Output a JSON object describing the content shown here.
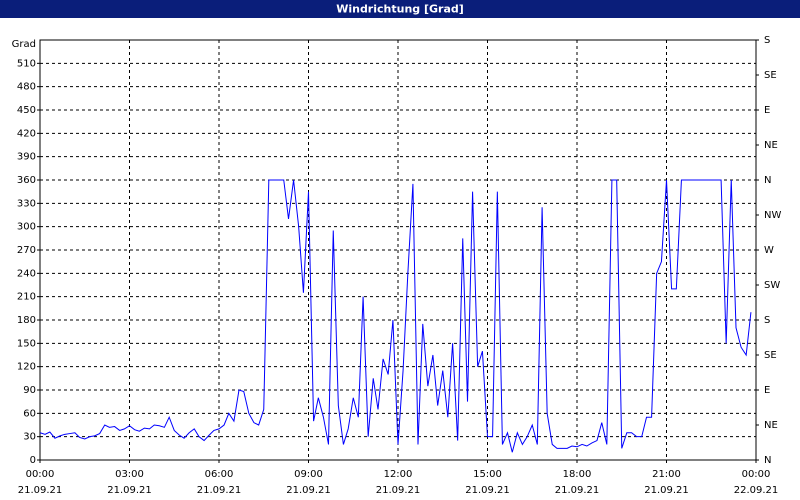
{
  "chart_data": {
    "type": "line",
    "title": "Windrichtung [Grad]",
    "y_label": "Grad",
    "color": "#0000ff",
    "grid": true,
    "x": [
      0,
      0.17,
      0.33,
      0.5,
      0.67,
      0.83,
      1,
      1.17,
      1.33,
      1.5,
      1.67,
      1.83,
      2,
      2.17,
      2.33,
      2.5,
      2.67,
      2.83,
      3,
      3.17,
      3.33,
      3.5,
      3.67,
      3.83,
      4,
      4.17,
      4.33,
      4.5,
      4.67,
      4.83,
      5,
      5.17,
      5.33,
      5.5,
      5.67,
      5.83,
      6,
      6.17,
      6.33,
      6.5,
      6.67,
      6.83,
      7,
      7.17,
      7.33,
      7.5,
      7.67,
      7.83,
      8,
      8.17,
      8.33,
      8.5,
      8.67,
      8.83,
      9,
      9.17,
      9.33,
      9.5,
      9.67,
      9.83,
      10,
      10.17,
      10.33,
      10.5,
      10.67,
      10.83,
      11,
      11.17,
      11.33,
      11.5,
      11.67,
      11.83,
      12,
      12.17,
      12.33,
      12.5,
      12.67,
      12.83,
      13,
      13.17,
      13.33,
      13.5,
      13.67,
      13.83,
      14,
      14.17,
      14.33,
      14.5,
      14.67,
      14.83,
      15,
      15.17,
      15.33,
      15.5,
      15.67,
      15.83,
      16,
      16.17,
      16.33,
      16.5,
      16.67,
      16.83,
      17,
      17.17,
      17.33,
      17.5,
      17.67,
      17.83,
      18,
      18.17,
      18.33,
      18.5,
      18.67,
      18.83,
      19,
      19.17,
      19.33,
      19.5,
      19.67,
      19.83,
      20,
      20.17,
      20.33,
      20.5,
      20.67,
      20.83,
      21,
      21.17,
      21.33,
      21.5,
      21.67,
      21.83,
      22,
      22.17,
      22.33,
      22.5,
      22.67,
      22.83,
      23,
      23.17,
      23.33,
      23.5,
      23.67,
      23.83
    ],
    "values": [
      35,
      33,
      36,
      28,
      31,
      33,
      34,
      35,
      29,
      27,
      30,
      31,
      34,
      45,
      42,
      43,
      38,
      40,
      44,
      39,
      37,
      41,
      40,
      45,
      44,
      42,
      55,
      38,
      32,
      28,
      35,
      40,
      30,
      25,
      32,
      38,
      40,
      45,
      60,
      50,
      90,
      88,
      60,
      48,
      45,
      65,
      360,
      360,
      360,
      360,
      310,
      360,
      300,
      215,
      345,
      50,
      80,
      55,
      20,
      295,
      70,
      20,
      40,
      80,
      55,
      210,
      30,
      105,
      65,
      130,
      110,
      180,
      20,
      115,
      240,
      355,
      20,
      175,
      95,
      135,
      70,
      115,
      55,
      150,
      25,
      285,
      75,
      345,
      120,
      140,
      30,
      30,
      345,
      20,
      35,
      10,
      35,
      20,
      30,
      45,
      20,
      325,
      60,
      20,
      15,
      15,
      15,
      18,
      17,
      20,
      18,
      22,
      25,
      48,
      20,
      360,
      360,
      15,
      35,
      35,
      30,
      30,
      55,
      55,
      240,
      255,
      360,
      220,
      220,
      360,
      360,
      360,
      360,
      360,
      360,
      360,
      360,
      360,
      150,
      360,
      170,
      145,
      135,
      190
    ],
    "xlim": [
      0,
      24
    ],
    "xticks": [
      {
        "value": 0,
        "label": "00:00"
      },
      {
        "value": 3,
        "label": "03:00"
      },
      {
        "value": 6,
        "label": "06:00"
      },
      {
        "value": 9,
        "label": "09:00"
      },
      {
        "value": 12,
        "label": "12:00"
      },
      {
        "value": 15,
        "label": "15:00"
      },
      {
        "value": 18,
        "label": "18:00"
      },
      {
        "value": 21,
        "label": "21:00"
      },
      {
        "value": 24,
        "label": "00:00"
      }
    ],
    "xtick_dates": [
      "21.09.21",
      "21.09.21",
      "21.09.21",
      "21.09.21",
      "21.09.21",
      "21.09.21",
      "21.09.21",
      "21.09.21",
      "22.09.21"
    ],
    "ylim": [
      0,
      540
    ],
    "yticks": [
      0,
      30,
      60,
      90,
      120,
      150,
      180,
      210,
      240,
      270,
      300,
      330,
      360,
      390,
      420,
      450,
      480,
      510
    ],
    "y2lim": [
      0,
      540
    ],
    "y2ticks": [
      {
        "value": 0,
        "label": "N"
      },
      {
        "value": 45,
        "label": "NE"
      },
      {
        "value": 90,
        "label": "E"
      },
      {
        "value": 135,
        "label": "SE"
      },
      {
        "value": 180,
        "label": "S"
      },
      {
        "value": 225,
        "label": "SW"
      },
      {
        "value": 270,
        "label": "W"
      },
      {
        "value": 315,
        "label": "NW"
      },
      {
        "value": 360,
        "label": "N"
      },
      {
        "value": 405,
        "label": "NE"
      },
      {
        "value": 450,
        "label": "E"
      },
      {
        "value": 495,
        "label": "SE"
      },
      {
        "value": 540,
        "label": "S"
      }
    ]
  }
}
